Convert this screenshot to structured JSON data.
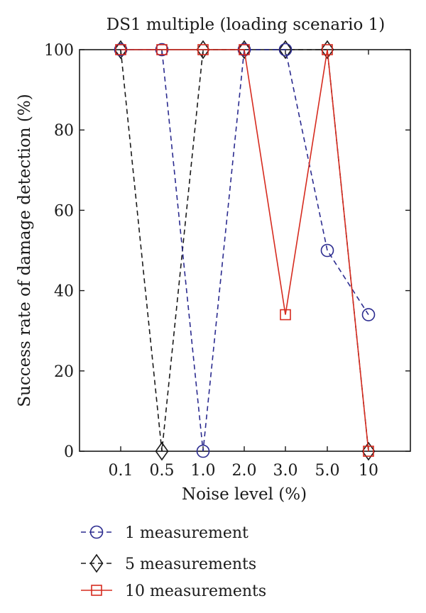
{
  "colors": {
    "series1": "#2b2b8f",
    "series2": "#1a1a1a",
    "series3": "#d62b1f",
    "axis": "#1a1a1a"
  },
  "chart_data": {
    "type": "line",
    "title": "DS1 multiple (loading scenario 1)",
    "xlabel": "Noise level (%)",
    "ylabel": "Success rate of damage detection (%)",
    "categories": [
      "0.1",
      "0.5",
      "1.0",
      "2.0",
      "3.0",
      "5.0",
      "10"
    ],
    "ylim": [
      0,
      100
    ],
    "yticks": [
      "0",
      "20",
      "40",
      "60",
      "80",
      "100"
    ],
    "legend_position": "bottom",
    "series": [
      {
        "name": "1 measurement",
        "marker": "circle",
        "dash": "dashed",
        "values": [
          100,
          100,
          0,
          100,
          100,
          50,
          34
        ]
      },
      {
        "name": "5 measurements",
        "marker": "diamond",
        "dash": "dashed",
        "values": [
          100,
          0,
          100,
          100,
          100,
          100,
          0
        ]
      },
      {
        "name": "10 measurements",
        "marker": "square",
        "dash": "solid",
        "values": [
          100,
          100,
          100,
          100,
          34,
          100,
          0
        ]
      }
    ]
  }
}
